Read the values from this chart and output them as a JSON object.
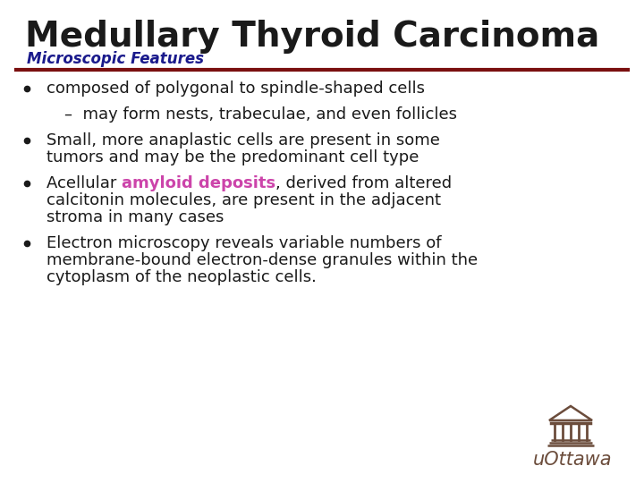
{
  "title": "Medullary Thyroid Carcinoma",
  "subtitle": "Microscopic Features",
  "title_color": "#1a1a1a",
  "subtitle_color": "#1a1a8c",
  "line_color": "#7a1010",
  "background_color": "#ffffff",
  "bullet_color": "#1a1a1a",
  "highlight_color": "#cc44aa",
  "footer_color": "#6b4c3b",
  "footer_text": "uOttawa",
  "title_fontsize": 28,
  "subtitle_fontsize": 12,
  "body_fontsize": 13,
  "bullets": [
    {
      "has_bullet": true,
      "lines": [
        [
          {
            "text": "composed of polygonal to spindle-shaped cells",
            "bold": false,
            "color": "#1a1a1a"
          }
        ]
      ]
    },
    {
      "has_bullet": false,
      "indent": true,
      "lines": [
        [
          {
            "text": "–  may form nests, trabeculae, and even follicles",
            "bold": false,
            "color": "#1a1a1a"
          }
        ]
      ]
    },
    {
      "has_bullet": true,
      "lines": [
        [
          {
            "text": "Small, more anaplastic cells are present in some",
            "bold": false,
            "color": "#1a1a1a"
          }
        ],
        [
          {
            "text": "tumors and may be the predominant cell type",
            "bold": false,
            "color": "#1a1a1a"
          }
        ]
      ]
    },
    {
      "has_bullet": true,
      "lines": [
        [
          {
            "text": "Acellular ",
            "bold": false,
            "color": "#1a1a1a"
          },
          {
            "text": "amyloid deposits",
            "bold": true,
            "color": "#cc44aa"
          },
          {
            "text": ", derived from altered",
            "bold": false,
            "color": "#1a1a1a"
          }
        ],
        [
          {
            "text": "calcitonin molecules, are present in the adjacent",
            "bold": false,
            "color": "#1a1a1a"
          }
        ],
        [
          {
            "text": "stroma in many cases",
            "bold": false,
            "color": "#1a1a1a"
          }
        ]
      ]
    },
    {
      "has_bullet": true,
      "lines": [
        [
          {
            "text": "Electron microscopy reveals variable numbers of",
            "bold": false,
            "color": "#1a1a1a"
          }
        ],
        [
          {
            "text": "membrane-bound electron-dense granules within the",
            "bold": false,
            "color": "#1a1a1a"
          }
        ],
        [
          {
            "text": "cytoplasm of the neoplastic cells.",
            "bold": false,
            "color": "#1a1a1a"
          }
        ]
      ]
    }
  ]
}
